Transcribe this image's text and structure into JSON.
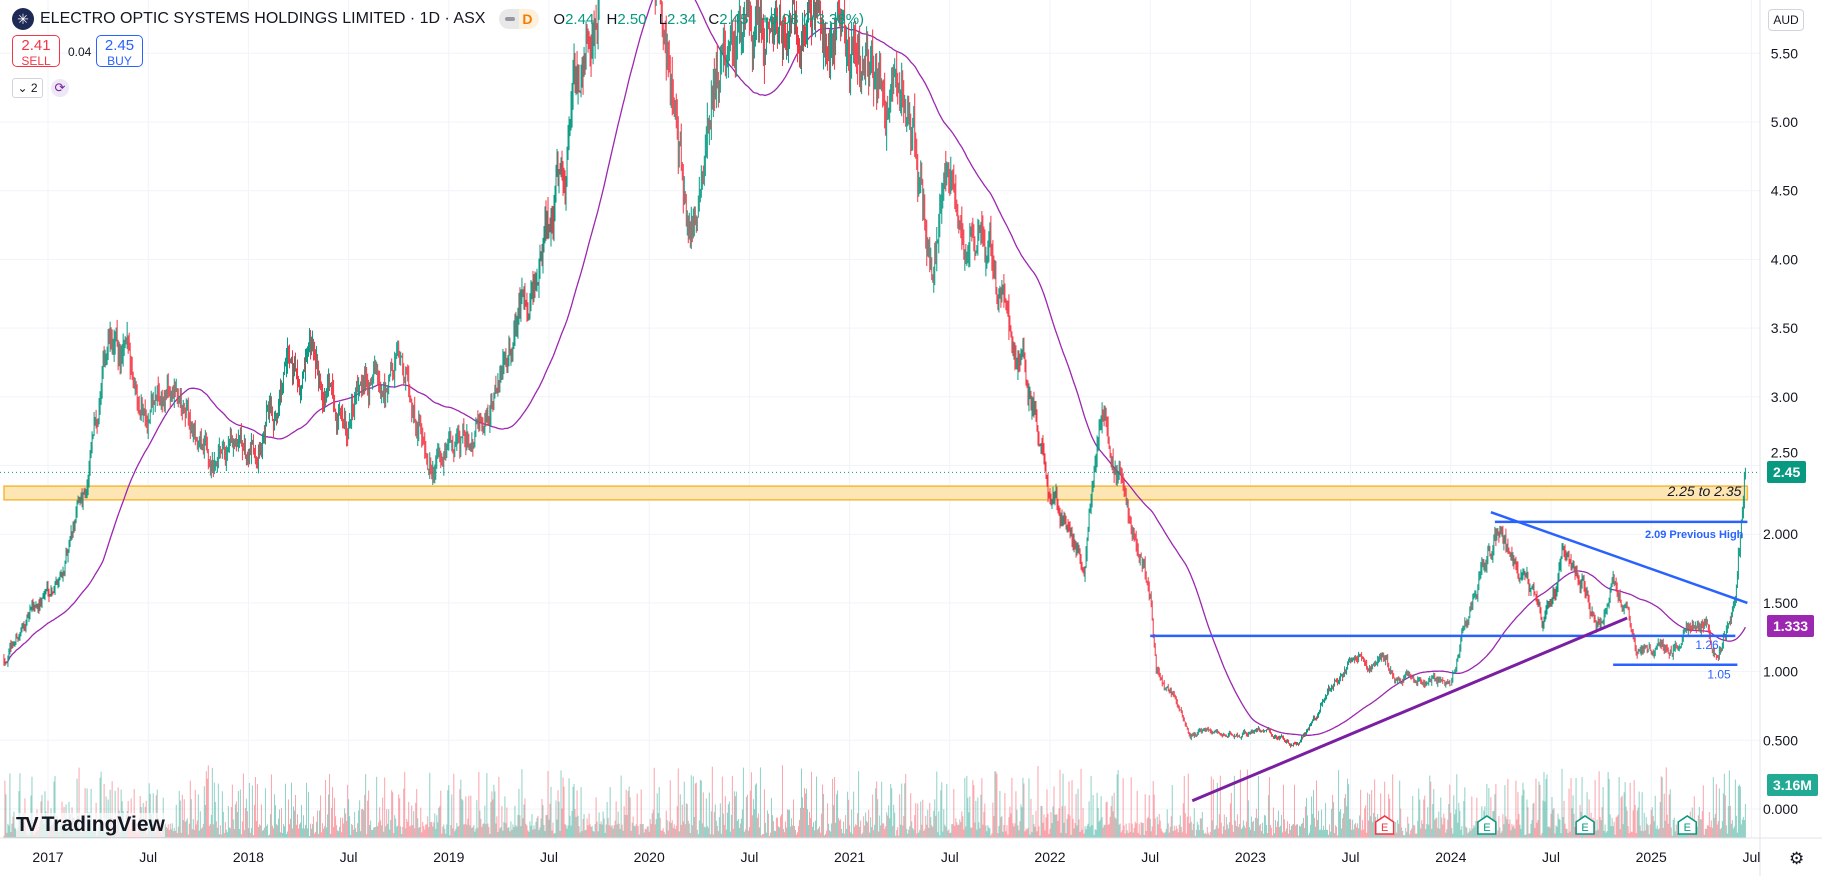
{
  "header": {
    "title": "ELECTRO OPTIC SYSTEMS HOLDINGS LIMITED · 1D · ASX",
    "badge_letter": "D",
    "ohlc": {
      "o_label": "O",
      "o": "2.44",
      "h_label": "H",
      "h": "2.50",
      "l_label": "L",
      "l": "2.34",
      "c_label": "C",
      "c": "2.45",
      "change": "+0.08 (+3.38%)"
    },
    "sell_price": "2.41",
    "sell_label": "SELL",
    "spread": "0.04",
    "buy_price": "2.45",
    "buy_label": "BUY",
    "indicators_count": "2",
    "collapse_icon": "chevron-down-icon",
    "sync_icon": "refresh-icon"
  },
  "currency_button": "AUD",
  "branding": {
    "logo_text": "TradingView"
  },
  "colors": {
    "up": "#089981",
    "down": "#f23645",
    "ma": "#9c27b0",
    "trend": "#2962ff",
    "support": "#7b1fa2",
    "zone_fill": "#fde6b4",
    "zone_border": "#f5b93a"
  },
  "chart_data": {
    "type": "candlestick",
    "title": "ELECTRO OPTIC SYSTEMS HOLDINGS LIMITED · 1D · ASX",
    "ylabel": "AUD",
    "ylim": [
      -0.2,
      5.8
    ],
    "xlim": [
      2016.78,
      2025.8
    ],
    "y_ticks": [
      "0.000",
      "0.500",
      "1.000",
      "1.500",
      "2.000",
      "2.50",
      "3.00",
      "3.50",
      "4.00",
      "4.50",
      "5.00",
      "5.50"
    ],
    "y_tick_values": [
      0,
      0.5,
      1,
      1.5,
      2,
      2.5,
      3,
      3.5,
      4,
      4.5,
      5,
      5.5
    ],
    "x_ticks": [
      {
        "t": 2017,
        "label": "2017"
      },
      {
        "t": 2017.5,
        "label": "Jul"
      },
      {
        "t": 2018,
        "label": "2018"
      },
      {
        "t": 2018.5,
        "label": "Jul"
      },
      {
        "t": 2019,
        "label": "2019"
      },
      {
        "t": 2019.5,
        "label": "Jul"
      },
      {
        "t": 2020,
        "label": "2020"
      },
      {
        "t": 2020.5,
        "label": "Jul"
      },
      {
        "t": 2021,
        "label": "2021"
      },
      {
        "t": 2021.5,
        "label": "Jul"
      },
      {
        "t": 2022,
        "label": "2022"
      },
      {
        "t": 2022.5,
        "label": "Jul"
      },
      {
        "t": 2023,
        "label": "2023"
      },
      {
        "t": 2023.5,
        "label": "Jul"
      },
      {
        "t": 2024,
        "label": "2024"
      },
      {
        "t": 2024.5,
        "label": "Jul"
      },
      {
        "t": 2025,
        "label": "2025"
      },
      {
        "t": 2025.5,
        "label": "Jul"
      }
    ],
    "price_path": [
      [
        2016.78,
        1.1
      ],
      [
        2017.1,
        1.84
      ],
      [
        2017.2,
        2.43
      ],
      [
        2017.3,
        3.37
      ],
      [
        2017.5,
        3.0
      ],
      [
        2017.63,
        3.0
      ],
      [
        2017.84,
        2.45
      ],
      [
        2018.0,
        2.5
      ],
      [
        2018.2,
        3.2
      ],
      [
        2018.5,
        2.95
      ],
      [
        2018.74,
        3.2
      ],
      [
        2018.97,
        2.5
      ],
      [
        2019.2,
        2.85
      ],
      [
        2019.35,
        3.6
      ],
      [
        2019.5,
        4.2
      ],
      [
        2019.67,
        5.5
      ],
      [
        2019.78,
        6.3
      ],
      [
        2020.0,
        6.5
      ],
      [
        2020.2,
        4.2
      ],
      [
        2020.33,
        5.4
      ],
      [
        2020.6,
        5.75
      ],
      [
        2020.94,
        5.65
      ],
      [
        2021.2,
        5.07
      ],
      [
        2021.3,
        5.15
      ],
      [
        2021.41,
        3.96
      ],
      [
        2021.5,
        4.64
      ],
      [
        2021.7,
        3.96
      ],
      [
        2021.88,
        3.11
      ],
      [
        2022.0,
        2.35
      ],
      [
        2022.17,
        1.84
      ],
      [
        2022.26,
        3.03
      ],
      [
        2022.38,
        2.18
      ],
      [
        2022.5,
        1.58
      ],
      [
        2022.53,
        0.99
      ],
      [
        2022.7,
        0.56
      ],
      [
        2023.04,
        0.56
      ],
      [
        2023.24,
        0.48
      ],
      [
        2023.38,
        0.82
      ],
      [
        2023.56,
        1.16
      ],
      [
        2023.73,
        0.99
      ],
      [
        2024.0,
        0.9
      ],
      [
        2024.12,
        1.58
      ],
      [
        2024.23,
        2.0
      ],
      [
        2024.46,
        1.33
      ],
      [
        2024.58,
        1.92
      ],
      [
        2024.73,
        1.33
      ],
      [
        2024.81,
        1.67
      ],
      [
        2024.93,
        1.16
      ],
      [
        2025.07,
        1.16
      ],
      [
        2025.27,
        1.41
      ],
      [
        2025.33,
        1.07
      ],
      [
        2025.42,
        1.5
      ],
      [
        2025.47,
        2.45
      ]
    ],
    "series": [
      {
        "name": "Price (daily candles)",
        "last": 2.45
      },
      {
        "name": "Moving average",
        "last": 1.333
      },
      {
        "name": "Volume",
        "last": "3.16M"
      }
    ],
    "annotations": {
      "zone": {
        "from": 2.25,
        "to": 2.35,
        "label": "2.25 to 2.35",
        "end_t": 2025.48
      },
      "previous_high": {
        "price": 2.09,
        "label": "2.09 Previous High",
        "t0": 2024.22,
        "t1": 2025.48
      },
      "support_126": {
        "price": 1.26,
        "label": "1.26",
        "t0": 2022.5,
        "t1": 2025.42
      },
      "support_105": {
        "price": 1.05,
        "label": "1.05",
        "t0": 2024.81,
        "t1": 2025.43
      },
      "descending_trendline": {
        "p0": [
          2024.2,
          2.16
        ],
        "p1": [
          2025.48,
          1.5
        ]
      },
      "ascending_trendline": {
        "p0": [
          2022.71,
          0.06
        ],
        "p1": [
          2024.88,
          1.39
        ]
      }
    },
    "price_labels": {
      "last": "2.45",
      "ma": "1.333",
      "volume": "3.16M"
    },
    "earnings": [
      {
        "t": 2023.67,
        "label": "E",
        "status": "upcoming-miss"
      },
      {
        "t": 2024.18,
        "label": "E",
        "status": "reported"
      },
      {
        "t": 2024.67,
        "label": "E",
        "status": "reported"
      },
      {
        "t": 2025.18,
        "label": "E",
        "status": "reported"
      }
    ],
    "grid": true
  }
}
